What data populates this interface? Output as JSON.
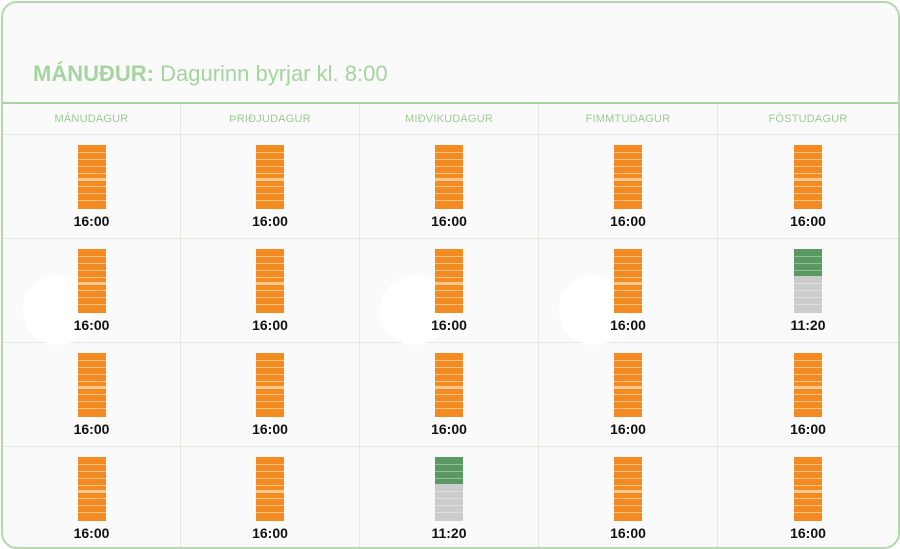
{
  "header": {
    "day": "MÁNUÐUR:",
    "subtitle": "Dagurinn byrjar kl. 8:00"
  },
  "colors": {
    "orange": "#f28c22",
    "green": "#5a9a62",
    "gray": "#cccccc",
    "accent": "#a6d4a0"
  },
  "columns": [
    "MÁNUDAGUR",
    "ÞRIÐJUDAGUR",
    "MIÐVIKUDAGUR",
    "FIMMTUDAGUR",
    "FÖSTUDAGUR"
  ],
  "rows": [
    [
      {
        "time": "16:00",
        "type": "full"
      },
      {
        "time": "16:00",
        "type": "full"
      },
      {
        "time": "16:00",
        "type": "full"
      },
      {
        "time": "16:00",
        "type": "full"
      },
      {
        "time": "16:00",
        "type": "full"
      }
    ],
    [
      {
        "time": "16:00",
        "type": "full"
      },
      {
        "time": "16:00",
        "type": "full"
      },
      {
        "time": "16:00",
        "type": "full"
      },
      {
        "time": "16:00",
        "type": "full"
      },
      {
        "time": "11:20",
        "type": "short"
      }
    ],
    [
      {
        "time": "16:00",
        "type": "full"
      },
      {
        "time": "16:00",
        "type": "full"
      },
      {
        "time": "16:00",
        "type": "full"
      },
      {
        "time": "16:00",
        "type": "full"
      },
      {
        "time": "16:00",
        "type": "full"
      }
    ],
    [
      {
        "time": "16:00",
        "type": "full"
      },
      {
        "time": "16:00",
        "type": "full"
      },
      {
        "time": "11:20",
        "type": "short"
      },
      {
        "time": "16:00",
        "type": "full"
      },
      {
        "time": "16:00",
        "type": "full"
      }
    ]
  ]
}
